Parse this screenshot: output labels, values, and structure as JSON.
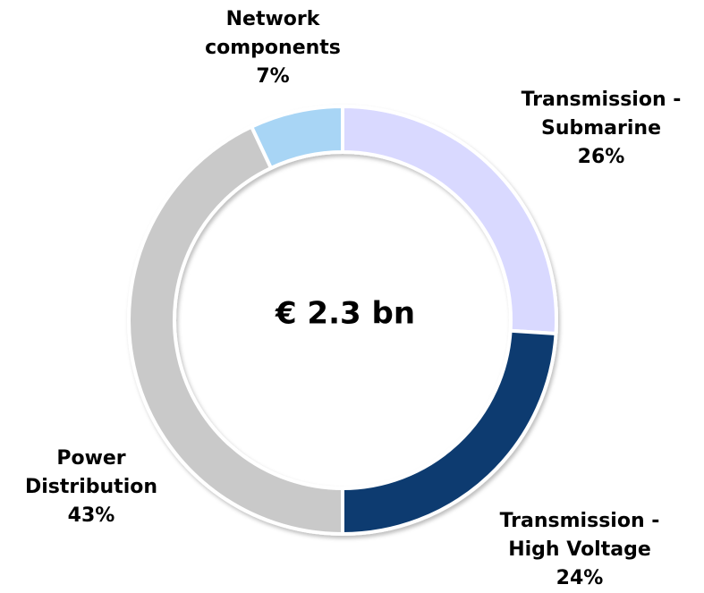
{
  "chart_data": {
    "type": "donut",
    "center_label": "€ 2.3 bn",
    "categories": [
      "Transmission - Submarine",
      "Transmission - High Voltage",
      "Power Distribution",
      "Network components"
    ],
    "values": [
      26,
      24,
      43,
      7
    ],
    "value_labels": [
      "26%",
      "24%",
      "43%",
      "7%"
    ],
    "colors": [
      "#d9d9ff",
      "#0b3a6f",
      "#c9c9c9",
      "#a8d5f5"
    ]
  }
}
